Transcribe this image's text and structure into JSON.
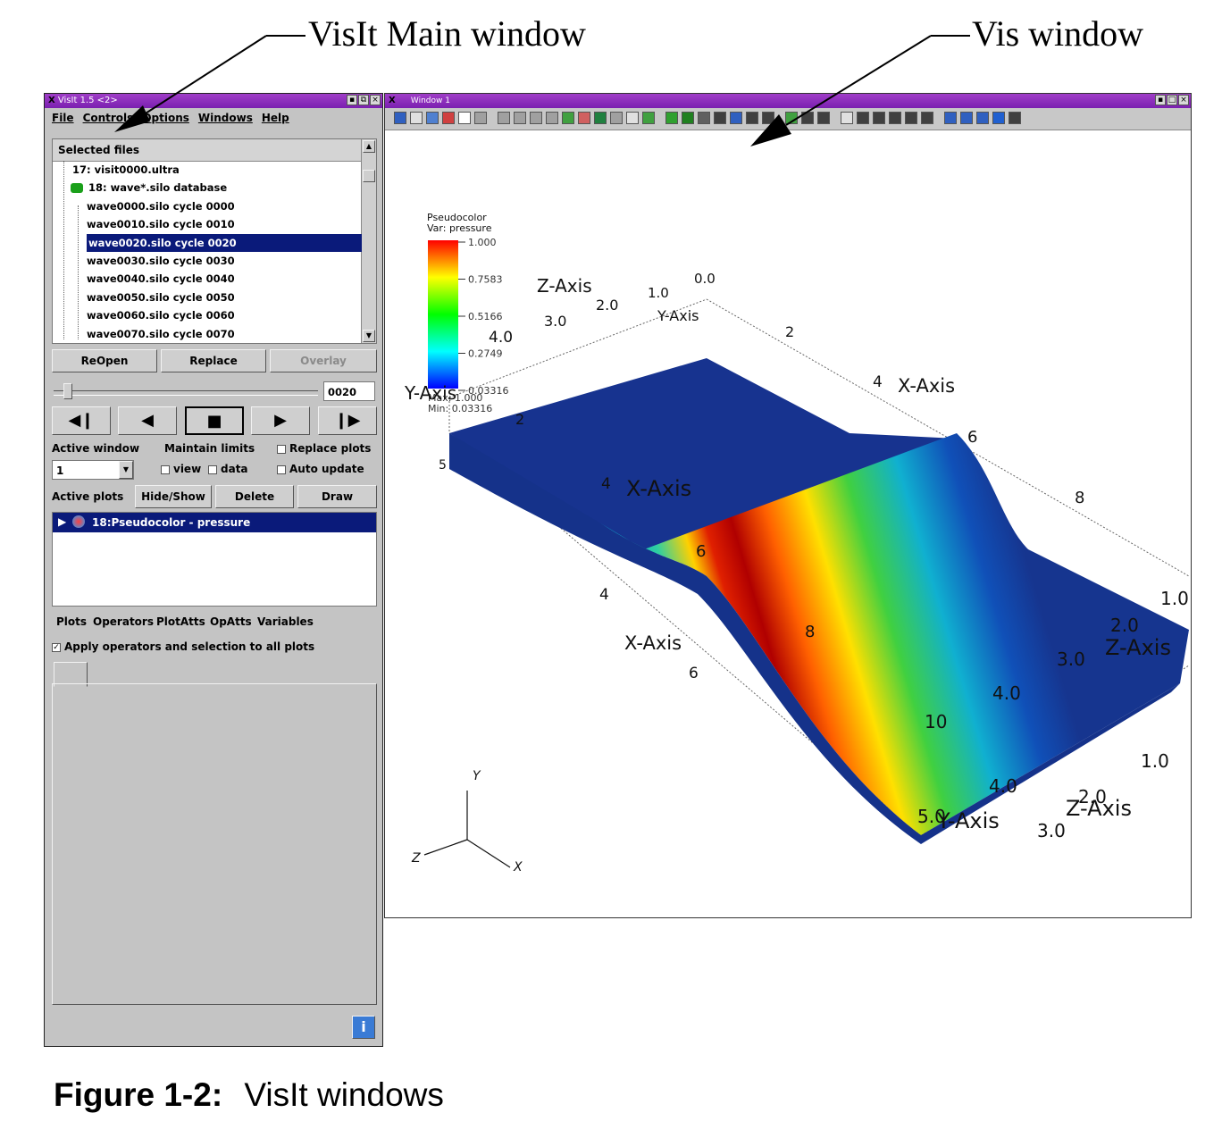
{
  "annotations": {
    "main_label": "VisIt Main window",
    "vis_label": "Vis window"
  },
  "caption": {
    "number": "Figure 1-2:",
    "text": "VisIt windows"
  },
  "main_window": {
    "title": "VisIt 1.5 <2>",
    "menu": [
      "File",
      "Controls",
      "Options",
      "Windows",
      "Help"
    ],
    "files_header": "Selected files",
    "files": [
      "17: visit0000.ultra",
      "18: wave*.silo database",
      "wave0000.silo cycle 0000",
      "wave0010.silo cycle 0010",
      "wave0020.silo cycle 0020",
      "wave0030.silo cycle 0030",
      "wave0040.silo cycle 0040",
      "wave0050.silo cycle 0050",
      "wave0060.silo cycle 0060",
      "wave0070.silo cycle 0070"
    ],
    "selected_file_index": 4,
    "buttons": {
      "reopen": "ReOpen",
      "replace": "Replace",
      "overlay": "Overlay"
    },
    "time_value": "0020",
    "time_slider_fraction": 0.04,
    "labels": {
      "active_window": "Active window",
      "maintain_limits": "Maintain limits",
      "replace_plots": "Replace plots",
      "view": "view",
      "data": "data",
      "auto_update": "Auto update",
      "active_plots": "Active plots"
    },
    "active_window_value": "1",
    "plot_buttons": {
      "hide_show": "Hide/Show",
      "delete": "Delete",
      "draw": "Draw"
    },
    "plot_entry": "18:Pseudocolor - pressure",
    "bottom_menu": [
      "Plots",
      "Operators",
      "PlotAtts",
      "OpAtts",
      "Variables"
    ],
    "apply_all_label": "Apply operators and selection to all plots",
    "apply_all_checked": true
  },
  "vis_window": {
    "title": "Window 1",
    "legend": {
      "title": "Pseudocolor",
      "var": "Var: pressure",
      "ticks": [
        "1.000",
        "0.7583",
        "0.5166",
        "0.2749",
        "0.03316"
      ],
      "max": "Max: 1.000",
      "min": "Min: 0.03316"
    },
    "axis_labels": [
      {
        "id": "z-axis-top",
        "text": "Z-Axis"
      },
      {
        "id": "y-axis-top",
        "text": "Y-Axis"
      },
      {
        "id": "x-axis-top",
        "text": "X-Axis"
      },
      {
        "id": "y-axis-left",
        "text": "Y-Axis"
      },
      {
        "id": "x-axis-mid",
        "text": "X-Axis"
      },
      {
        "id": "x-axis-front",
        "text": "X-Axis"
      },
      {
        "id": "z-axis-right",
        "text": "Z-Axis"
      },
      {
        "id": "z-axis-bottom",
        "text": "Z-Axis"
      },
      {
        "id": "y-axis-bottom",
        "text": "Y-Axis"
      }
    ],
    "tick_labels": [
      "1.0",
      "2.0",
      "3.0",
      "4.0",
      "0.0",
      "2",
      "4",
      "6",
      "8",
      "2",
      "4",
      "6",
      "8",
      "4",
      "6",
      "1.0",
      "2.0",
      "3.0",
      "4.0",
      "1.0",
      "2.0",
      "3.0",
      "4.0",
      "5.0",
      "10",
      "5"
    ],
    "triad": {
      "x": "X",
      "y": "Y",
      "z": "Z"
    }
  }
}
